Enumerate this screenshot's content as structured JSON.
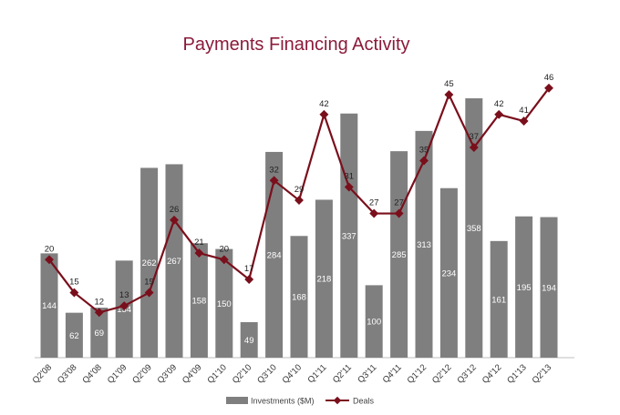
{
  "chart_data": {
    "type": "bar+line",
    "title": "Payments Financing Activity",
    "categories": [
      "Q2'08",
      "Q3'08",
      "Q4'08",
      "Q1'09",
      "Q2'09",
      "Q3'09",
      "Q4'09",
      "Q1'10",
      "Q2'10",
      "Q3'10",
      "Q4'10",
      "Q1'11",
      "Q2'11",
      "Q3'11",
      "Q4'11",
      "Q1'12",
      "Q2'12",
      "Q3'12",
      "Q4'12",
      "Q1'13",
      "Q2'13"
    ],
    "series": [
      {
        "name": "Investments ($M)",
        "type": "bar",
        "color": "#7f7f7f",
        "values": [
          144,
          62,
          69,
          134,
          262,
          267,
          158,
          150,
          49,
          284,
          168,
          218,
          337,
          100,
          285,
          313,
          234,
          358,
          161,
          195,
          194
        ]
      },
      {
        "name": "Deals",
        "type": "line",
        "color": "#7a0f1c",
        "values": [
          20,
          15,
          12,
          13,
          15,
          26,
          21,
          20,
          17,
          32,
          29,
          42,
          31,
          27,
          27,
          35,
          45,
          37,
          42,
          41,
          46
        ]
      }
    ],
    "legend": "bottom",
    "grid": false
  }
}
